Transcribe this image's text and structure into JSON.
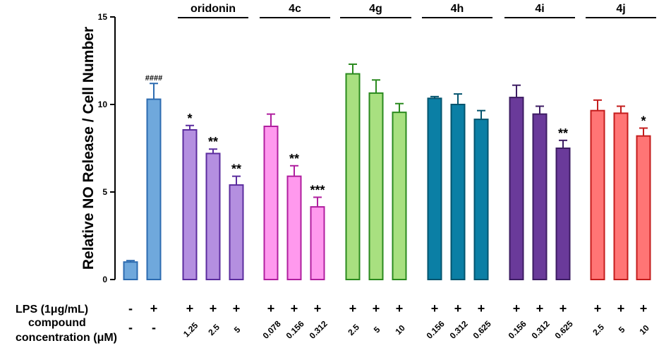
{
  "chart_data": {
    "type": "bar",
    "ylabel": "Relative NO Release / Cell Number",
    "ylim": [
      0,
      15
    ],
    "yticks": [
      0,
      5,
      10,
      15
    ],
    "lps_label": "LPS (1μg/mL)",
    "conc_label_line1": "compound",
    "conc_label_line2": "concentration (μM)",
    "control_bars": [
      {
        "lps": "-",
        "conc": "-",
        "value": 1.0,
        "error": 0.08,
        "sig": "",
        "fill": "#6fa8dc",
        "stroke": "#2c6bb0"
      },
      {
        "lps": "+",
        "conc": "-",
        "value": 10.3,
        "error": 0.9,
        "sig": "####",
        "fill": "#6fa8dc",
        "stroke": "#2c6bb0"
      }
    ],
    "groups": [
      {
        "name": "oridonin",
        "fill": "#b48fe0",
        "stroke": "#5b2c9e",
        "concs": [
          "1.25",
          "2.5",
          "5"
        ],
        "lps": [
          "+",
          "+",
          "+"
        ],
        "values": [
          8.55,
          7.2,
          5.4
        ],
        "errors": [
          0.25,
          0.25,
          0.5
        ],
        "sig": [
          "*",
          "**",
          "**"
        ]
      },
      {
        "name": "4c",
        "fill": "#ff99ee",
        "stroke": "#b01f9f",
        "concs": [
          "0.078",
          "0.156",
          "0.312"
        ],
        "lps": [
          "+",
          "+",
          "+"
        ],
        "values": [
          8.75,
          5.9,
          4.15
        ],
        "errors": [
          0.7,
          0.6,
          0.55
        ],
        "sig": [
          "",
          "**",
          "***"
        ]
      },
      {
        "name": "4g",
        "fill": "#a8e080",
        "stroke": "#2a8a1e",
        "concs": [
          "2.5",
          "5",
          "10"
        ],
        "lps": [
          "+",
          "+",
          "+"
        ],
        "values": [
          11.75,
          10.65,
          9.55
        ],
        "errors": [
          0.55,
          0.75,
          0.5
        ],
        "sig": [
          "",
          "",
          ""
        ]
      },
      {
        "name": "4h",
        "fill": "#0b7fa5",
        "stroke": "#03546e",
        "concs": [
          "0.156",
          "0.312",
          "0.625"
        ],
        "lps": [
          "+",
          "+",
          "+"
        ],
        "values": [
          10.35,
          10.0,
          9.15
        ],
        "errors": [
          0.1,
          0.6,
          0.5
        ],
        "sig": [
          "",
          "",
          ""
        ]
      },
      {
        "name": "4i",
        "fill": "#6a3a9a",
        "stroke": "#3d1c63",
        "concs": [
          "0.156",
          "0.312",
          "0.625"
        ],
        "lps": [
          "+",
          "+",
          "+"
        ],
        "values": [
          10.4,
          9.45,
          7.5
        ],
        "errors": [
          0.7,
          0.45,
          0.45
        ],
        "sig": [
          "",
          "",
          "**"
        ]
      },
      {
        "name": "4j",
        "fill": "#ff7575",
        "stroke": "#c41c1c",
        "concs": [
          "2.5",
          "5",
          "10"
        ],
        "lps": [
          "+",
          "+",
          "+"
        ],
        "values": [
          9.65,
          9.5,
          8.2
        ],
        "errors": [
          0.6,
          0.4,
          0.45
        ],
        "sig": [
          "",
          "",
          "*"
        ]
      }
    ]
  }
}
